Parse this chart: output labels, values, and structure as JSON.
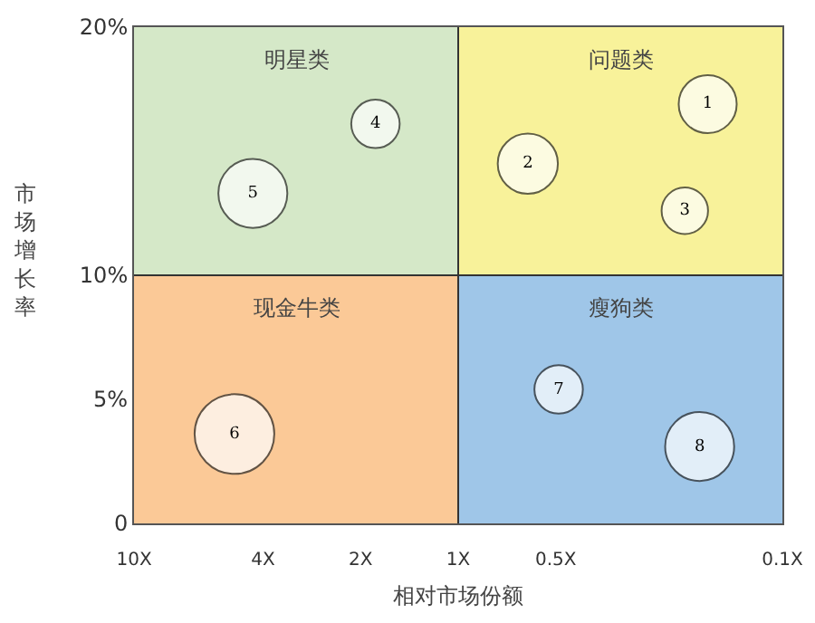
{
  "chart_data": {
    "type": "bubble",
    "xlabel": "相对市场份额",
    "ylabel": "市场增长率",
    "log": "x",
    "xlim": [
      10,
      0.1
    ],
    "xticks": [
      {
        "value": 10,
        "label": "10X"
      },
      {
        "value": 4,
        "label": "4X"
      },
      {
        "value": 2,
        "label": "2X"
      },
      {
        "value": 1,
        "label": "1X"
      },
      {
        "value": 0.5,
        "label": "0.5X"
      },
      {
        "value": 0.1,
        "label": "0.1X"
      }
    ],
    "ylim": [
      0,
      20
    ],
    "yticks": [
      {
        "value": 0,
        "label": "0"
      },
      {
        "value": 5,
        "label": "5%"
      },
      {
        "value": 10,
        "label": "10%"
      },
      {
        "value": 20,
        "label": "20%"
      }
    ],
    "grid": false,
    "legend": false,
    "ref_lines": [
      {
        "axis": "x",
        "value": 1,
        "label": null,
        "color": "#333333"
      },
      {
        "axis": "y",
        "value": 10,
        "label": null,
        "color": "#333333"
      }
    ],
    "annotations": [
      "明星类",
      "问题类",
      "现金牛类",
      "瘦狗类"
    ],
    "series": [
      {
        "name": "1",
        "color": "#ffffff",
        "x": [
          0.17
        ],
        "values": [
          16.9
        ],
        "sizes": [
          0.53
        ]
      },
      {
        "name": "2",
        "color": "#ffffff",
        "x": [
          0.61
        ],
        "values": [
          14.5
        ],
        "sizes": [
          0.57
        ]
      },
      {
        "name": "3",
        "color": "#ffffff",
        "x": [
          0.2
        ],
        "values": [
          12.6
        ],
        "sizes": [
          0.34
        ]
      },
      {
        "name": "4",
        "color": "#ffffff",
        "x": [
          1.8
        ],
        "values": [
          16.1
        ],
        "sizes": [
          0.37
        ]
      },
      {
        "name": "5",
        "color": "#ffffff",
        "x": [
          4.3
        ],
        "values": [
          13.3
        ],
        "sizes": [
          0.75
        ]
      },
      {
        "name": "6",
        "color": "#ffffff",
        "x": [
          4.9
        ],
        "values": [
          3.6
        ],
        "sizes": [
          1
        ]
      },
      {
        "name": "7",
        "color": "#ffffff",
        "x": [
          0.49
        ],
        "values": [
          5.4
        ],
        "sizes": [
          0.37
        ]
      },
      {
        "name": "8",
        "color": "#ffffff",
        "x": [
          0.18
        ],
        "values": [
          3.1
        ],
        "sizes": [
          0.75
        ]
      }
    ]
  }
}
